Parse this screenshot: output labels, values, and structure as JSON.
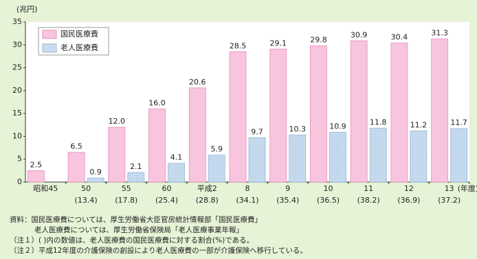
{
  "chart_data": {
    "type": "bar",
    "y_label": "(兆円)",
    "x_label": "(年度)",
    "categories": [
      "昭和45",
      "50",
      "55",
      "60",
      "平成2",
      "8",
      "9",
      "10",
      "11",
      "12",
      "13"
    ],
    "sub_categories": [
      null,
      "(13.4)",
      "(17.8)",
      "(25.4)",
      "(28.8)",
      "(34.1)",
      "(35.4)",
      "(36.5)",
      "(38.2)",
      "(36.9)",
      "(37.2)"
    ],
    "series": [
      {
        "name": "国民医療費",
        "color": "#f9c4de",
        "values": [
          2.5,
          6.5,
          12.0,
          16.0,
          20.6,
          28.5,
          29.1,
          29.8,
          30.9,
          30.4,
          31.3
        ],
        "value_labels": [
          "2.5",
          "6.5",
          "12.0",
          "16.0",
          "20.6",
          "28.5",
          "29.1",
          "29.8",
          "30.9",
          "30.4",
          "31.3"
        ]
      },
      {
        "name": "老人医療費",
        "color": "#c8dcef",
        "values": [
          null,
          0.9,
          2.1,
          4.1,
          5.9,
          9.7,
          10.3,
          10.9,
          11.8,
          11.2,
          11.7
        ]
      }
    ],
    "ylim": [
      0,
      35
    ],
    "yticks": [
      0,
      5,
      10,
      15,
      20,
      25,
      30,
      35
    ],
    "legend": "top-left",
    "notes": [
      "資料：国民医療費については、厚生労働省大臣官房統計情報部「国民医療費」",
      "老人医療費については、厚生労働省保険局「老人医療事業年報」",
      "（注１）(  )内の数値は、老人医療費の国民医療費に対する割合(%)である。",
      "（注２）平成12年度の介護保険の創設により老人医療費の一部が介護保険へ移行している。"
    ]
  }
}
